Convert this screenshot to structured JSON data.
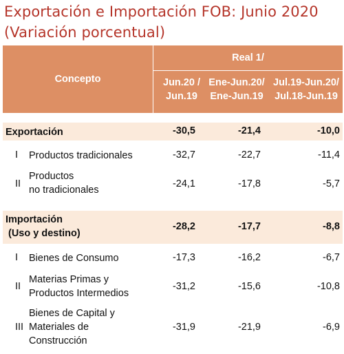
{
  "title": {
    "line1": "Exportación e Importación FOB: Junio 2020",
    "line2": "(Variación porcentual)"
  },
  "header": {
    "concepto": "Concepto",
    "real": "Real 1/",
    "col1_a": "Jun.20 /",
    "col1_b": "Jun.19",
    "col2_a": "Ene-Jun.20/",
    "col2_b": "Ene-Jun.19",
    "col3_a": "Jul.19-Jun.20/",
    "col3_b": "Jul.18-Jun.19"
  },
  "rows": {
    "exportacion": {
      "label": "Exportación",
      "v1": "-30,5",
      "v2": "-21,4",
      "v3": "-10,0"
    },
    "prod_trad": {
      "num": "I",
      "label": "Productos tradicionales",
      "v1": "-32,7",
      "v2": "-22,7",
      "v3": "-11,4"
    },
    "prod_notrad": {
      "num": "II",
      "label_a": "Productos",
      "label_b": "no tradicionales",
      "v1": "-24,1",
      "v2": "-17,8",
      "v3": "-5,7"
    },
    "importacion": {
      "label_a": "Importación",
      "label_b": "(Uso y destino)",
      "v1": "-28,2",
      "v2": "-17,7",
      "v3": "-8,8"
    },
    "consumo": {
      "num": "I",
      "label": "Bienes de Consumo",
      "v1": "-17,3",
      "v2": "-16,2",
      "v3": "-6,7"
    },
    "materias": {
      "num": "II",
      "label_a": "Materias Primas y",
      "label_b": "Productos Intermedios",
      "v1": "-31,2",
      "v2": "-15,6",
      "v3": "-10,8"
    },
    "capital": {
      "num": "III",
      "label_a": "Bienes de Capital y",
      "label_b": "Materiales de",
      "label_c": "Construcción",
      "v1": "-31,9",
      "v2": "-21,9",
      "v3": "-6,9"
    }
  }
}
